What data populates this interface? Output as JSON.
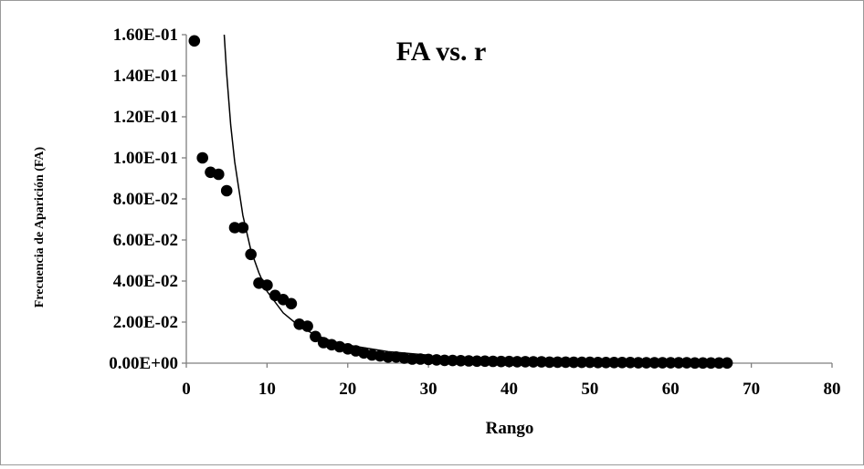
{
  "chart_data": {
    "type": "scatter",
    "title": "FA  vs.  r",
    "xlabel": "Rango",
    "ylabel": "Frecuencia de Aparición (FA)",
    "xlim": [
      0,
      80
    ],
    "ylim": [
      0,
      0.16
    ],
    "x_ticks": [
      "0",
      "10",
      "20",
      "30",
      "40",
      "50",
      "60",
      "70",
      "80"
    ],
    "y_ticks": [
      "0.00E+00",
      "2.00E-02",
      "4.00E-02",
      "6.00E-02",
      "8.00E-02",
      "1.00E-01",
      "1.20E-01",
      "1.40E-01",
      "1.60E-01"
    ],
    "grid": false,
    "legend": "none",
    "series": [
      {
        "kind": "points",
        "x": [
          1,
          2,
          3,
          4,
          5,
          6,
          7,
          8,
          9,
          10,
          11,
          12,
          13,
          14,
          15,
          16,
          17,
          18,
          19,
          20,
          21,
          22,
          23,
          24,
          25,
          26,
          27,
          28,
          29,
          30,
          31,
          32,
          33,
          34,
          35,
          36,
          37,
          38,
          39,
          40,
          41,
          42,
          43,
          44,
          45,
          46,
          47,
          48,
          49,
          50,
          51,
          52,
          53,
          54,
          55,
          56,
          57,
          58,
          59,
          60,
          61,
          62,
          63,
          64,
          65,
          66,
          67
        ],
        "y": [
          0.157,
          0.1,
          0.093,
          0.092,
          0.084,
          0.066,
          0.066,
          0.053,
          0.039,
          0.038,
          0.033,
          0.031,
          0.029,
          0.019,
          0.018,
          0.013,
          0.01,
          0.009,
          0.008,
          0.007,
          0.006,
          0.005,
          0.004,
          0.0035,
          0.003,
          0.003,
          0.0025,
          0.002,
          0.002,
          0.0018,
          0.0016,
          0.0014,
          0.0013,
          0.0012,
          0.0011,
          0.001,
          0.001,
          0.0009,
          0.0008,
          0.0008,
          0.0007,
          0.0007,
          0.0006,
          0.0006,
          0.0005,
          0.0005,
          0.0005,
          0.0004,
          0.0004,
          0.0004,
          0.0003,
          0.0003,
          0.0003,
          0.0003,
          0.0003,
          0.0002,
          0.0002,
          0.0002,
          0.0002,
          0.0002,
          0.0002,
          0.0002,
          0.0001,
          0.0001,
          0.0001,
          0.0001,
          0.0001
        ]
      },
      {
        "kind": "line",
        "x": [
          4.7,
          5,
          5.5,
          6,
          7,
          8,
          9,
          10,
          12,
          14,
          16,
          18,
          20,
          25,
          30
        ],
        "y": [
          0.16,
          0.141,
          0.116,
          0.098,
          0.072,
          0.055,
          0.044,
          0.035,
          0.0245,
          0.018,
          0.0137,
          0.0108,
          0.0088,
          0.0056,
          0.0039
        ]
      }
    ]
  }
}
